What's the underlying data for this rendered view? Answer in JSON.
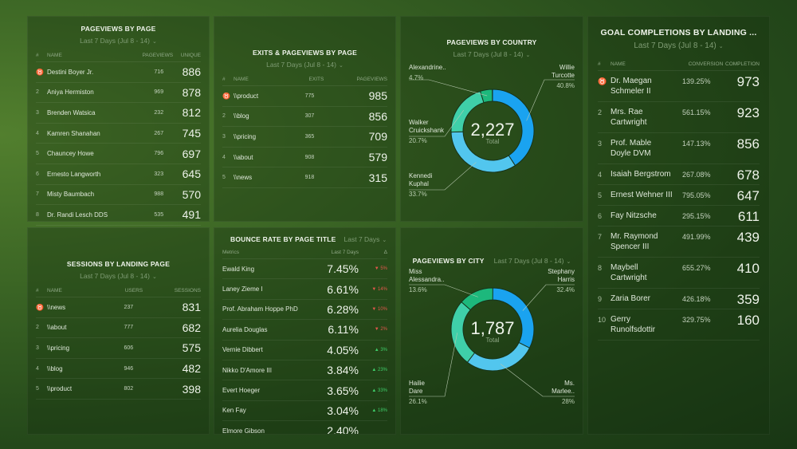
{
  "colors": {
    "blue": "#1aa3f0",
    "light_blue": "#52c6ee",
    "teal": "#3fcfa9",
    "green": "#1db87c",
    "down": "#e2574c",
    "up": "#3fce6a"
  },
  "date_range": "Last 7 Days (Jul 8 - 14)",
  "pageviews_by_page": {
    "title": "PAGEVIEWS BY PAGE",
    "columns": [
      "#",
      "NAME",
      "PAGEVIEWS",
      "UNIQUE"
    ],
    "rows": [
      [
        "trophy-icon",
        "Destini Boyer Jr.",
        "716",
        "886"
      ],
      [
        "2",
        "Aniya Hermiston",
        "969",
        "878"
      ],
      [
        "3",
        "Brenden Watsica",
        "232",
        "812"
      ],
      [
        "4",
        "Kamren Shanahan",
        "267",
        "745"
      ],
      [
        "5",
        "Chauncey Howe",
        "796",
        "697"
      ],
      [
        "6",
        "Ernesto Langworth",
        "323",
        "645"
      ],
      [
        "7",
        "Misty Baumbach",
        "988",
        "570"
      ],
      [
        "8",
        "Dr. Randi Lesch DDS",
        "535",
        "491"
      ]
    ]
  },
  "exits_pageviews": {
    "title": "EXITS & PAGEVIEWS BY PAGE",
    "columns": [
      "#",
      "NAME",
      "EXITS",
      "PAGEVIEWS"
    ],
    "rows": [
      [
        "trophy-icon",
        "\\\\product",
        "775",
        "985"
      ],
      [
        "2",
        "\\\\blog",
        "307",
        "856"
      ],
      [
        "3",
        "\\\\pricing",
        "365",
        "709"
      ],
      [
        "4",
        "\\\\about",
        "908",
        "579"
      ],
      [
        "5",
        "\\\\news",
        "918",
        "315"
      ]
    ]
  },
  "sessions_by_landing": {
    "title": "SESSIONS BY LANDING PAGE",
    "columns": [
      "#",
      "NAME",
      "USERS",
      "SESSIONS"
    ],
    "rows": [
      [
        "trophy-icon",
        "\\\\news",
        "237",
        "831"
      ],
      [
        "2",
        "\\\\about",
        "777",
        "682"
      ],
      [
        "3",
        "\\\\pricing",
        "606",
        "575"
      ],
      [
        "4",
        "\\\\blog",
        "946",
        "482"
      ],
      [
        "5",
        "\\\\product",
        "802",
        "398"
      ]
    ]
  },
  "bounce_rate": {
    "title": "BOUNCE RATE BY PAGE TITLE",
    "range": "Last 7 Days",
    "columns": [
      "Metrics",
      "Last 7 Days",
      "Δ"
    ],
    "rows": [
      [
        "Ewald King",
        "7.45%",
        "down",
        "5%"
      ],
      [
        "Laney Zieme I",
        "6.61%",
        "down",
        "14%"
      ],
      [
        "Prof. Abraham Hoppe PhD",
        "6.28%",
        "down",
        "10%"
      ],
      [
        "Aurelia Douglas",
        "6.11%",
        "down",
        "2%"
      ],
      [
        "Vernie Dibbert",
        "4.05%",
        "up",
        "3%"
      ],
      [
        "Nikko D'Amore III",
        "3.84%",
        "up",
        "23%"
      ],
      [
        "Evert Hoeger",
        "3.65%",
        "up",
        "33%"
      ],
      [
        "Ken Fay",
        "3.04%",
        "up",
        "18%"
      ],
      [
        "Elmore Gibson",
        "2.40%",
        "up",
        ""
      ]
    ]
  },
  "pageviews_by_country": {
    "title": "PAGEVIEWS BY COUNTRY",
    "total": "2,227",
    "total_label": "Total",
    "slices": [
      {
        "label": "Willie Turcotte",
        "pct": 40.8,
        "pct_text": "40.8%",
        "color": "#1aa3f0"
      },
      {
        "label": "Kennedi Kuphal",
        "pct": 33.7,
        "pct_text": "33.7%",
        "color": "#52c6ee"
      },
      {
        "label": "Walker Cruickshank",
        "pct": 20.7,
        "pct_text": "20.7%",
        "color": "#3fcfa9"
      },
      {
        "label": "Alexandrine..",
        "pct": 4.7,
        "pct_text": "4.7%",
        "color": "#1db87c"
      }
    ]
  },
  "pageviews_by_city": {
    "title": "PAGEVIEWS BY CITY",
    "total": "1,787",
    "total_label": "Total",
    "slices": [
      {
        "label": "Stephany Harris",
        "pct": 32.4,
        "pct_text": "32.4%",
        "color": "#1aa3f0"
      },
      {
        "label": "Ms. Marlee..",
        "pct": 28,
        "pct_text": "28%",
        "color": "#52c6ee"
      },
      {
        "label": "Hailie Dare",
        "pct": 26.1,
        "pct_text": "26.1%",
        "color": "#3fcfa9"
      },
      {
        "label": "Miss Alessandra..",
        "pct": 13.6,
        "pct_text": "13.6%",
        "color": "#1db87c"
      }
    ]
  },
  "goal_completions": {
    "title": "GOAL COMPLETIONS BY LANDING ...",
    "columns": [
      "#",
      "NAME",
      "CONVERSION",
      "COMPLETION"
    ],
    "rows": [
      [
        "trophy-icon",
        "Dr. Maegan Schmeler II",
        "139.25%",
        "973"
      ],
      [
        "2",
        "Mrs. Rae Cartwright",
        "561.15%",
        "923"
      ],
      [
        "3",
        "Prof. Mable Doyle DVM",
        "147.13%",
        "856"
      ],
      [
        "4",
        "Isaiah Bergstrom",
        "267.08%",
        "678"
      ],
      [
        "5",
        "Ernest Wehner III",
        "795.05%",
        "647"
      ],
      [
        "6",
        "Fay Nitzsche",
        "295.15%",
        "611"
      ],
      [
        "7",
        "Mr. Raymond Spencer III",
        "491.99%",
        "439"
      ],
      [
        "8",
        "Maybell Cartwright",
        "655.27%",
        "410"
      ],
      [
        "9",
        "Zaria Borer",
        "426.18%",
        "359"
      ],
      [
        "10",
        "Gerry Runolfsdottir",
        "329.75%",
        "160"
      ]
    ]
  }
}
